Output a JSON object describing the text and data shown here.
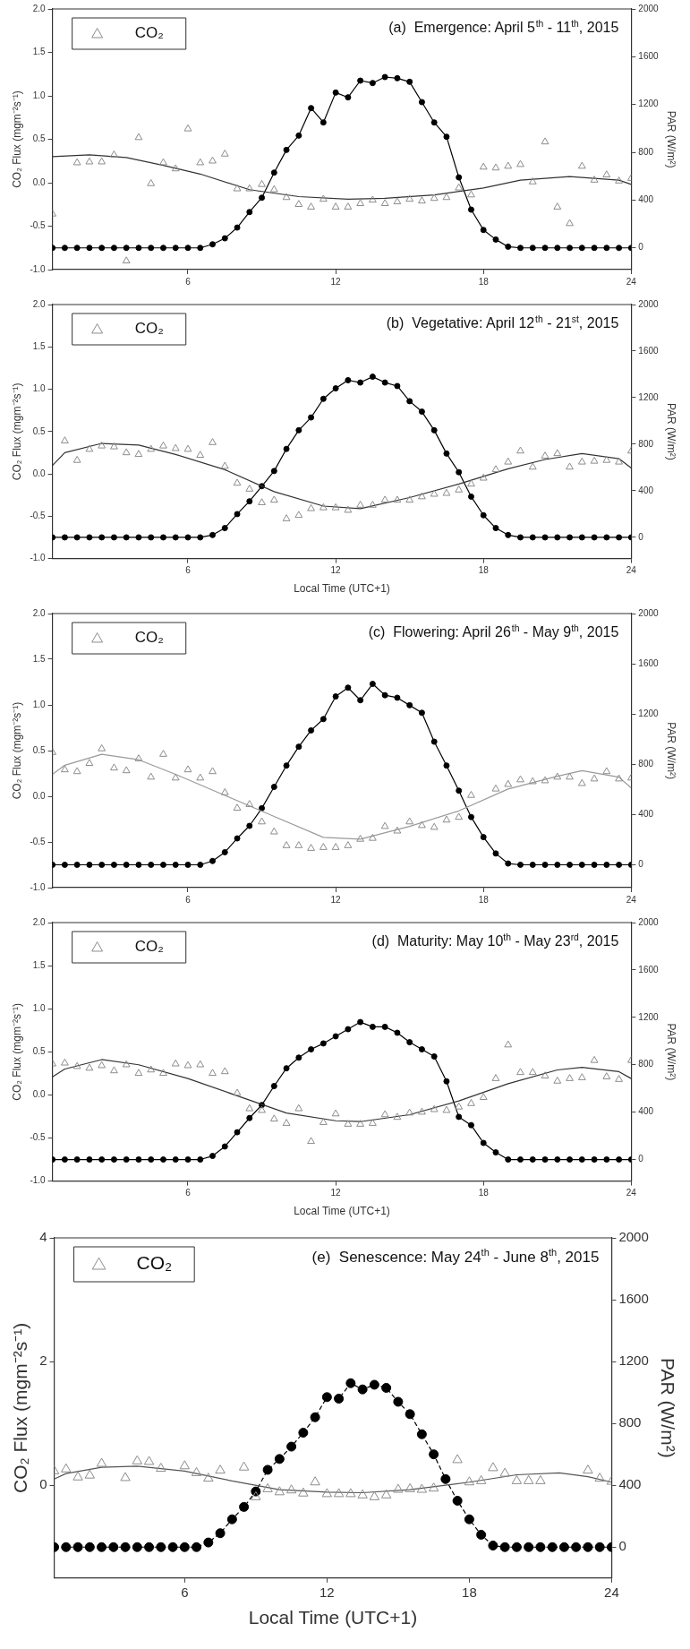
{
  "chart_data": [
    {
      "type": "scatter",
      "title": "(a)  Emergence: April 5$^{th}$ - 11$^{th}$, 2015",
      "ylabel": "CO₂ Flux (mgm⁻²s⁻¹)",
      "y2label": "PAR (W/m²)",
      "legend": "top left",
      "xlim": [
        0.5,
        24
      ],
      "xticks": [
        6,
        12,
        18,
        24
      ],
      "ylim": [
        -1,
        2
      ],
      "yticks": [
        {
          "value": -1,
          "label": "-1.0"
        },
        -0.5,
        {
          "value": 0,
          "label": "0.0"
        },
        0.5,
        {
          "value": 1,
          "label": "1.0"
        },
        1.5,
        {
          "value": 2,
          "label": "2.0"
        }
      ],
      "y2lim": [
        -182,
        2000
      ],
      "y2ticks": [
        0,
        400,
        800,
        1200,
        1600,
        2000
      ],
      "x": [
        0.5,
        1,
        1.5,
        2,
        2.5,
        3,
        3.5,
        4,
        4.5,
        5,
        5.5,
        6,
        6.5,
        7,
        7.5,
        8,
        8.5,
        9,
        9.5,
        10,
        10.5,
        11,
        11.5,
        12,
        12.5,
        13,
        13.5,
        14,
        14.5,
        15,
        15.5,
        16,
        16.5,
        17,
        17.5,
        18,
        18.5,
        19,
        19.5,
        20,
        20.5,
        21,
        21.5,
        22,
        22.5,
        23,
        23.5,
        24
      ],
      "series": [
        {
          "name": "CO₂",
          "type": "scatter",
          "marker": "triangle",
          "color": "#8c8c8c",
          "values": [
            -0.36,
            null,
            0.23,
            0.24,
            0.24,
            0.32,
            -0.9,
            0.52,
            -0.01,
            0.23,
            0.16,
            0.62,
            0.23,
            0.25,
            0.33,
            -0.07,
            -0.07,
            -0.02,
            -0.08,
            -0.17,
            -0.25,
            -0.28,
            -0.19,
            -0.28,
            -0.28,
            -0.24,
            -0.2,
            -0.24,
            -0.22,
            -0.19,
            -0.21,
            -0.18,
            -0.17,
            -0.06,
            -0.14,
            0.18,
            0.17,
            0.19,
            0.21,
            0.01,
            0.47,
            -0.28,
            -0.47,
            0.19,
            0.03,
            0.09,
            0.02,
            0.05
          ]
        },
        {
          "type": "line",
          "marker": "none",
          "color": "#333333",
          "x": [
            0.5,
            2,
            3.5,
            5,
            6.5,
            8.5,
            10.5,
            12.5,
            14,
            16,
            18,
            19.5,
            21.5,
            23.5,
            24
          ],
          "values": [
            0.3,
            0.32,
            0.29,
            0.2,
            0.1,
            -0.08,
            -0.16,
            -0.19,
            -0.18,
            -0.14,
            -0.06,
            0.03,
            0.07,
            0.03,
            -0.02
          ]
        },
        {
          "type": "line",
          "axis": "y2",
          "marker": "circle",
          "color": "#000000",
          "values": [
            0,
            0,
            0,
            0,
            0,
            0,
            0,
            0,
            0,
            0,
            0,
            0,
            0,
            30,
            80,
            170,
            300,
            420,
            630,
            820,
            940,
            1170,
            1050,
            1300,
            1260,
            1400,
            1380,
            1430,
            1420,
            1390,
            1220,
            1050,
            930,
            590,
            320,
            150,
            70,
            10,
            0,
            0,
            0,
            0,
            0,
            0,
            0,
            0,
            0,
            0
          ]
        }
      ]
    },
    {
      "type": "scatter",
      "title": "(b)  Vegetative: April 12$^{th}$ - 21$^{st}$, 2015",
      "xlabel": "Local Time (UTC+1)",
      "ylabel": "CO₂ Flux (mgm⁻²s⁻¹)",
      "y2label": "PAR (W/m²)",
      "legend": "top left",
      "xlim": [
        0.5,
        24
      ],
      "xticks": [
        6,
        12,
        18,
        24
      ],
      "ylim": [
        -1,
        2
      ],
      "yticks": [
        {
          "value": -1,
          "label": "-1.0"
        },
        -0.5,
        {
          "value": 0,
          "label": "0.0"
        },
        0.5,
        {
          "value": 1,
          "label": "1.0"
        },
        1.5,
        {
          "value": 2,
          "label": "2.0"
        }
      ],
      "y2lim": [
        -182,
        2000
      ],
      "y2ticks": [
        0,
        400,
        800,
        1200,
        1600,
        2000
      ],
      "x": [
        0.5,
        1,
        1.5,
        2,
        2.5,
        3,
        3.5,
        4,
        4.5,
        5,
        5.5,
        6,
        6.5,
        7,
        7.5,
        8,
        8.5,
        9,
        9.5,
        10,
        10.5,
        11,
        11.5,
        12,
        12.5,
        13,
        13.5,
        14,
        14.5,
        15,
        15.5,
        16,
        16.5,
        17,
        17.5,
        18,
        18.5,
        19,
        19.5,
        20,
        20.5,
        21,
        21.5,
        22,
        22.5,
        23,
        23.5,
        24
      ],
      "series": [
        {
          "name": "CO₂",
          "type": "scatter",
          "marker": "triangle",
          "color": "#8c8c8c",
          "values": [
            null,
            0.39,
            0.16,
            0.29,
            0.33,
            0.32,
            0.25,
            0.23,
            0.29,
            0.33,
            0.3,
            0.29,
            0.22,
            0.37,
            0.09,
            -0.11,
            -0.18,
            -0.34,
            -0.31,
            -0.53,
            -0.49,
            -0.41,
            -0.4,
            -0.4,
            -0.43,
            -0.37,
            -0.37,
            -0.31,
            -0.31,
            -0.31,
            -0.27,
            -0.24,
            -0.23,
            -0.19,
            -0.12,
            -0.05,
            0.05,
            0.14,
            0.27,
            0.08,
            0.21,
            0.24,
            0.08,
            0.14,
            0.15,
            0.16,
            0.14,
            0.27
          ]
        },
        {
          "type": "line",
          "marker": "none",
          "color": "#333333",
          "x": [
            0.5,
            1,
            2.5,
            4,
            5.5,
            7.5,
            9.5,
            11.5,
            13,
            15,
            17,
            19,
            20.5,
            22,
            23.5,
            24
          ],
          "values": [
            0.1,
            0.25,
            0.36,
            0.34,
            0.23,
            0.05,
            -0.21,
            -0.38,
            -0.41,
            -0.28,
            -0.12,
            0.06,
            0.17,
            0.24,
            0.18,
            0.07
          ]
        },
        {
          "type": "line",
          "axis": "y2",
          "marker": "circle",
          "color": "#000000",
          "values": [
            0,
            0,
            0,
            0,
            0,
            0,
            0,
            0,
            0,
            0,
            0,
            0,
            0,
            20,
            80,
            200,
            310,
            440,
            570,
            760,
            920,
            1030,
            1190,
            1280,
            1350,
            1330,
            1380,
            1330,
            1300,
            1170,
            1080,
            920,
            720,
            560,
            350,
            190,
            80,
            20,
            0,
            0,
            0,
            0,
            0,
            0,
            0,
            0,
            0,
            0
          ]
        }
      ]
    },
    {
      "type": "scatter",
      "title": "(c)  Flowering: April 26$^{th}$ - May 9$^{th}$, 2015",
      "ylabel": "CO₂ Flux (mgm⁻²s⁻¹)",
      "y2label": "PAR (W/m²)",
      "legend": "top left",
      "xlim": [
        0.5,
        24
      ],
      "xticks": [
        6,
        12,
        18,
        24
      ],
      "ylim": [
        -1,
        2
      ],
      "yticks": [
        {
          "value": -1,
          "label": "-1.0"
        },
        -0.5,
        {
          "value": 0,
          "label": "0.0"
        },
        0.5,
        {
          "value": 1,
          "label": "1.0"
        },
        1.5,
        {
          "value": 2,
          "label": "2.0"
        }
      ],
      "y2lim": [
        -182,
        2000
      ],
      "y2ticks": [
        0,
        400,
        800,
        1200,
        1600,
        2000
      ],
      "x": [
        0.5,
        1,
        1.5,
        2,
        2.5,
        3,
        3.5,
        4,
        4.5,
        5,
        5.5,
        6,
        6.5,
        7,
        7.5,
        8,
        8.5,
        9,
        9.5,
        10,
        10.5,
        11,
        11.5,
        12,
        12.5,
        13,
        13.5,
        14,
        14.5,
        15,
        15.5,
        16,
        16.5,
        17,
        17.5,
        18,
        18.5,
        19,
        19.5,
        20,
        20.5,
        21,
        21.5,
        22,
        22.5,
        23,
        23.5,
        24
      ],
      "series": [
        {
          "name": "CO₂",
          "type": "scatter",
          "marker": "triangle",
          "color": "#8c8c8c",
          "values": [
            0.48,
            0.29,
            0.27,
            0.36,
            0.52,
            0.31,
            0.28,
            0.41,
            0.21,
            0.46,
            0.2,
            0.29,
            0.2,
            0.27,
            0.04,
            -0.13,
            -0.09,
            -0.28,
            -0.39,
            -0.54,
            -0.54,
            -0.57,
            -0.56,
            -0.56,
            -0.54,
            -0.47,
            -0.46,
            -0.33,
            -0.38,
            -0.28,
            -0.32,
            -0.34,
            -0.26,
            -0.23,
            0.01,
            null,
            0.08,
            0.13,
            0.18,
            0.16,
            0.17,
            0.21,
            0.21,
            0.14,
            0.19,
            0.27,
            0.19,
            0.2
          ]
        },
        {
          "type": "line",
          "marker": "none",
          "color": "#9a9a9a",
          "x": [
            0.5,
            1,
            2.5,
            4,
            5.5,
            7.5,
            9.5,
            11.5,
            13,
            15,
            17,
            19,
            21,
            22,
            23.5,
            24
          ],
          "values": [
            0.24,
            0.34,
            0.46,
            0.4,
            0.24,
            0.01,
            -0.22,
            -0.45,
            -0.47,
            -0.33,
            -0.16,
            0.08,
            0.22,
            0.28,
            0.21,
            0.09
          ]
        },
        {
          "type": "line",
          "axis": "y2",
          "marker": "circle",
          "color": "#000000",
          "values": [
            0,
            0,
            0,
            0,
            0,
            0,
            0,
            0,
            0,
            0,
            0,
            0,
            0,
            30,
            100,
            210,
            310,
            450,
            620,
            790,
            940,
            1070,
            1160,
            1340,
            1410,
            1310,
            1440,
            1350,
            1330,
            1270,
            1210,
            980,
            790,
            590,
            380,
            220,
            90,
            10,
            0,
            0,
            0,
            0,
            0,
            0,
            0,
            0,
            0,
            0
          ]
        }
      ]
    },
    {
      "type": "scatter",
      "title": "(d)  Maturity: May 10$^{th}$ - May 23$^{rd}$, 2015",
      "xlabel": "Local Time (UTC+1)",
      "ylabel": "CO₂ Flux (mgm⁻²s⁻¹)",
      "y2label": "PAR (W/m²)",
      "legend": "top left",
      "xlim": [
        0.5,
        24
      ],
      "xticks": [
        6,
        12,
        18,
        24
      ],
      "ylim": [
        -1,
        2
      ],
      "yticks": [
        {
          "value": -1,
          "label": "-1.0"
        },
        -0.5,
        {
          "value": 0,
          "label": "0.0"
        },
        0.5,
        {
          "value": 1,
          "label": "1.0"
        },
        1.5,
        {
          "value": 2,
          "label": "2.0"
        }
      ],
      "y2lim": [
        -182,
        2000
      ],
      "y2ticks": [
        0,
        400,
        800,
        1200,
        1600,
        2000
      ],
      "x": [
        0.5,
        1,
        1.5,
        2,
        2.5,
        3,
        3.5,
        4,
        4.5,
        5,
        5.5,
        6,
        6.5,
        7,
        7.5,
        8,
        8.5,
        9,
        9.5,
        10,
        10.5,
        11,
        11.5,
        12,
        12.5,
        13,
        13.5,
        14,
        14.5,
        15,
        15.5,
        16,
        16.5,
        17,
        17.5,
        18,
        18.5,
        19,
        19.5,
        20,
        20.5,
        21,
        21.5,
        22,
        22.5,
        23,
        23.5,
        24
      ],
      "series": [
        {
          "name": "CO₂",
          "type": "scatter",
          "marker": "triangle",
          "color": "#8c8c8c",
          "values": [
            0.36,
            0.37,
            0.33,
            0.31,
            0.34,
            0.28,
            0.35,
            0.25,
            0.29,
            0.25,
            0.36,
            0.34,
            0.35,
            0.25,
            0.27,
            0.02,
            -0.16,
            -0.18,
            -0.28,
            -0.33,
            -0.16,
            -0.54,
            -0.32,
            -0.22,
            -0.34,
            -0.34,
            -0.33,
            -0.23,
            -0.26,
            -0.21,
            -0.2,
            -0.17,
            -0.18,
            -0.14,
            -0.1,
            -0.03,
            0.19,
            0.58,
            0.26,
            0.26,
            0.22,
            0.16,
            0.19,
            0.2,
            0.4,
            0.21,
            0.18,
            0.4
          ]
        },
        {
          "type": "line",
          "marker": "none",
          "color": "#333333",
          "x": [
            0.5,
            1,
            2.5,
            4,
            6,
            8,
            10,
            12,
            13,
            15,
            17,
            19,
            21,
            22,
            23.5,
            24
          ],
          "values": [
            0.21,
            0.3,
            0.41,
            0.35,
            0.19,
            -0.01,
            -0.21,
            -0.3,
            -0.31,
            -0.23,
            -0.07,
            0.13,
            0.29,
            0.32,
            0.27,
            0.19
          ]
        },
        {
          "type": "line",
          "axis": "y2",
          "marker": "circle",
          "color": "#000000",
          "values": [
            0,
            0,
            0,
            0,
            0,
            0,
            0,
            0,
            0,
            0,
            0,
            0,
            0,
            30,
            110,
            230,
            350,
            460,
            620,
            770,
            860,
            930,
            980,
            1040,
            1100,
            1160,
            1120,
            1120,
            1070,
            990,
            930,
            870,
            660,
            360,
            290,
            140,
            60,
            0,
            0,
            0,
            0,
            0,
            0,
            0,
            0,
            0,
            0,
            0
          ]
        }
      ]
    },
    {
      "type": "scatter",
      "title": "(e)  Senescence: May 24$^{th}$ - June 8$^{th}$, 2015",
      "xlabel": "Local Time (UTC+1)",
      "ylabel": "CO₂ Flux (mgm⁻²s⁻¹)",
      "y2label": "PAR (W/m²)",
      "legend": "top left",
      "xlim": [
        0.5,
        24
      ],
      "xticks": [
        6,
        12,
        18,
        24
      ],
      "ylim": [
        -1.5,
        4
      ],
      "yticks": [
        0,
        2,
        4
      ],
      "y2lim": [
        -200,
        2000
      ],
      "y2ticks": [
        0,
        400,
        800,
        1200,
        1600,
        2000
      ],
      "x": [
        0.5,
        1,
        1.5,
        2,
        2.5,
        3,
        3.5,
        4,
        4.5,
        5,
        5.5,
        6,
        6.5,
        7,
        7.5,
        8,
        8.5,
        9,
        9.5,
        10,
        10.5,
        11,
        11.5,
        12,
        12.5,
        13,
        13.5,
        14,
        14.5,
        15,
        15.5,
        16,
        16.5,
        17,
        17.5,
        18,
        18.5,
        19,
        19.5,
        20,
        20.5,
        21,
        21.5,
        22,
        22.5,
        23,
        23.5,
        24
      ],
      "series": [
        {
          "name": "CO₂",
          "type": "scatter",
          "marker": "triangle",
          "color": "#8c8c8c",
          "values": [
            0.23,
            0.26,
            0.13,
            0.16,
            0.35,
            null,
            0.12,
            0.39,
            0.38,
            0.27,
            null,
            0.31,
            0.2,
            0.11,
            0.24,
            null,
            0.29,
            -0.19,
            -0.06,
            -0.11,
            -0.08,
            -0.13,
            0.05,
            -0.14,
            -0.14,
            -0.14,
            -0.16,
            -0.19,
            -0.16,
            -0.07,
            -0.06,
            -0.07,
            -0.05,
            null,
            0.41,
            0.05,
            0.07,
            0.28,
            0.19,
            0.07,
            0.07,
            0.07,
            null,
            null,
            null,
            0.24,
            0.11,
            0.06
          ]
        },
        {
          "type": "line",
          "marker": "none",
          "color": "#555555",
          "x": [
            0.5,
            1,
            2.5,
            4,
            6,
            8,
            10,
            12,
            13.5,
            15.5,
            18,
            20,
            21.8,
            23,
            24
          ],
          "values": [
            0.1,
            0.19,
            0.29,
            0.31,
            0.23,
            0.07,
            -0.07,
            -0.11,
            -0.12,
            -0.07,
            0.05,
            0.17,
            0.2,
            0.14,
            0.05
          ]
        },
        {
          "type": "line",
          "axis": "y2",
          "marker": "circle",
          "line_style": "dashed",
          "color": "#000000",
          "values": [
            0,
            0,
            0,
            0,
            0,
            0,
            0,
            0,
            0,
            0,
            0,
            0,
            0,
            30,
            90,
            180,
            260,
            360,
            500,
            570,
            650,
            740,
            840,
            970,
            960,
            1060,
            1020,
            1050,
            1030,
            940,
            860,
            730,
            600,
            440,
            300,
            180,
            80,
            10,
            0,
            0,
            0,
            0,
            0,
            0,
            0,
            0,
            0,
            0
          ]
        }
      ]
    }
  ]
}
